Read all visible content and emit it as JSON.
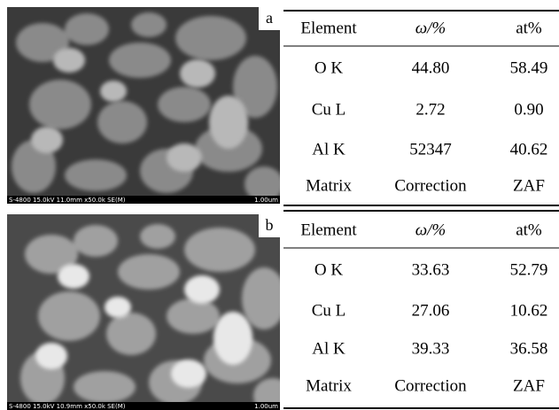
{
  "panels": [
    {
      "label": "a",
      "sem_info": "S-4800 15.0kV 11.0mm x50.0k SE(M)",
      "scale_bar": "1.00um",
      "table": {
        "header": [
          "Element",
          "ω/%",
          "at%"
        ],
        "rows": [
          [
            "O K",
            "44.80",
            "58.49"
          ],
          [
            "Cu L",
            "2.72",
            "0.90"
          ],
          [
            "Al K",
            "52347",
            "40.62"
          ],
          [
            "Matrix",
            "Correction",
            "ZAF"
          ]
        ]
      }
    },
    {
      "label": "b",
      "sem_info": "S-4800 15.0kV 10.9mm x50.0k SE(M)",
      "scale_bar": "1.00um",
      "table": {
        "header": [
          "Element",
          "ω/%",
          "at%"
        ],
        "rows": [
          [
            "O K",
            "33.63",
            "52.79"
          ],
          [
            "Cu L",
            "27.06",
            "10.62"
          ],
          [
            "Al K",
            "39.33",
            "36.58"
          ],
          [
            "Matrix",
            "Correction",
            "ZAF"
          ]
        ]
      }
    }
  ]
}
